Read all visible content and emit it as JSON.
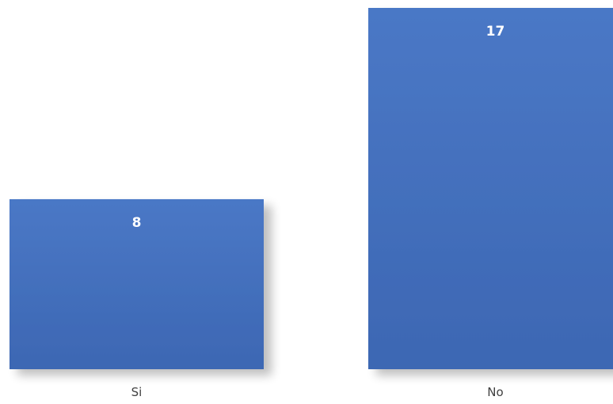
{
  "chart_data": {
    "type": "bar",
    "categories": [
      "Si",
      "No"
    ],
    "values": [
      8,
      17
    ],
    "ylim": [
      0,
      17
    ],
    "grid": false,
    "colors": {
      "bar": "#4472C4",
      "bar_dark": "#3a64ad",
      "value_label": "#ffffff",
      "category_label": "#404040"
    }
  }
}
